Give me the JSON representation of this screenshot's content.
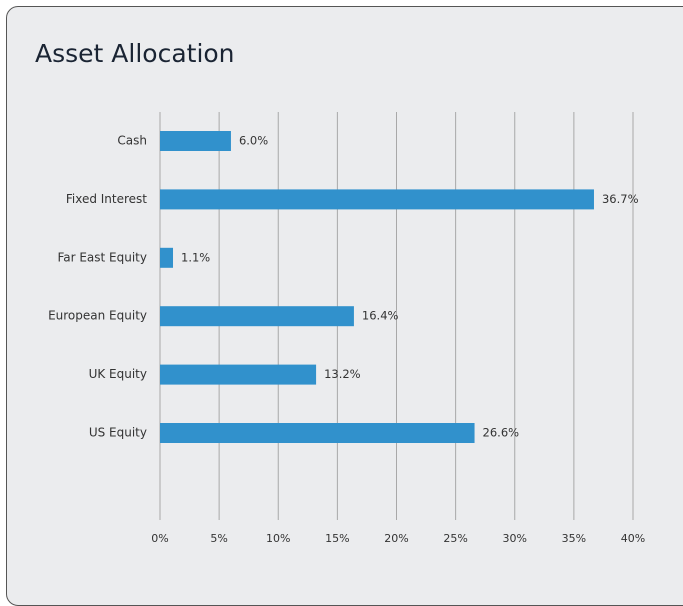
{
  "chart_data": {
    "type": "bar",
    "orientation": "horizontal",
    "title": "Asset Allocation",
    "categories": [
      "Cash",
      "Fixed Interest",
      "Far East Equity",
      "European Equity",
      "UK Equity",
      "US Equity"
    ],
    "values": [
      6.0,
      36.7,
      1.1,
      16.4,
      13.2,
      26.6
    ],
    "value_labels": [
      "6.0%",
      "36.7%",
      "1.1%",
      "16.4%",
      "13.2%",
      "26.6%"
    ],
    "color": "#3191cc",
    "xlim": [
      0,
      40
    ],
    "xticks": [
      {
        "value": 0,
        "label": "0%"
      },
      {
        "value": 5,
        "label": "5%"
      },
      {
        "value": 10,
        "label": "10%"
      },
      {
        "value": 15,
        "label": "15%"
      },
      {
        "value": 20,
        "label": "20%"
      },
      {
        "value": 25,
        "label": "25%"
      },
      {
        "value": 30,
        "label": "30%"
      },
      {
        "value": 35,
        "label": "35%"
      },
      {
        "value": 40,
        "label": "40%"
      }
    ],
    "grid": true
  }
}
